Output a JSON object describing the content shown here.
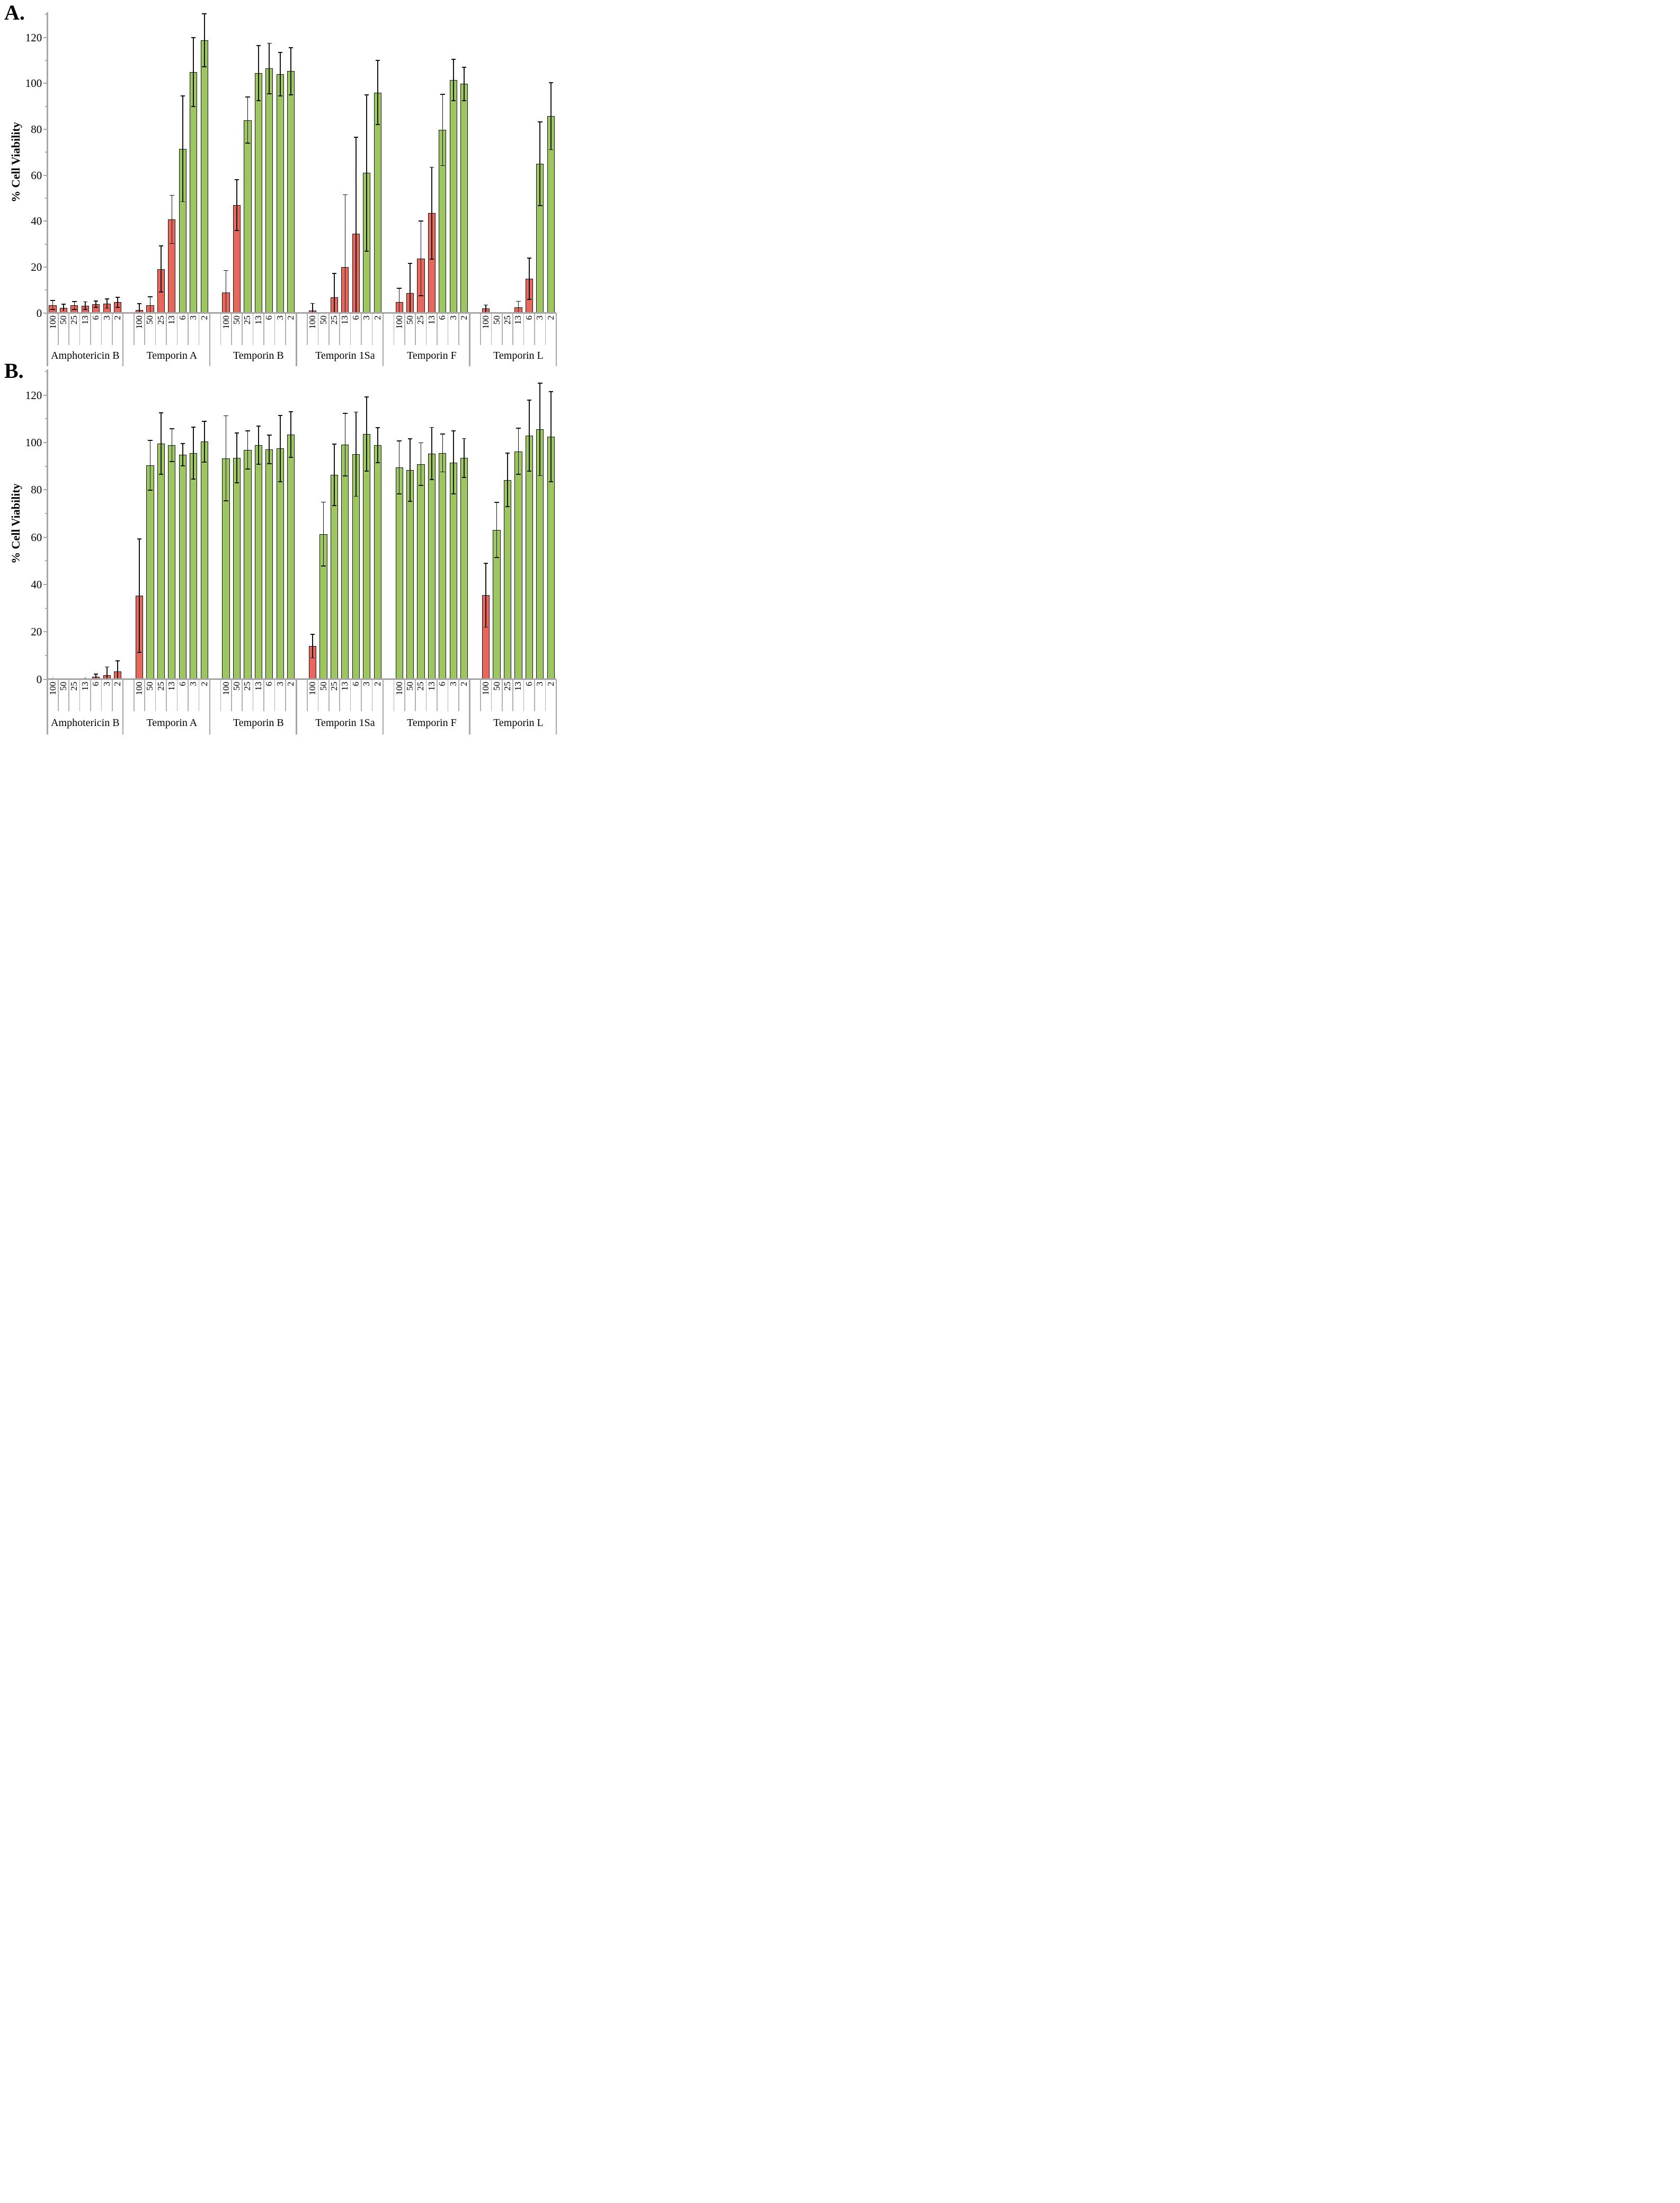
{
  "style": {
    "bar_red": "#E8675D",
    "bar_green": "#9DC561",
    "bar_border": "#141414",
    "axis_color": "#A6A6A6",
    "error_color": "#141414",
    "background": "#FFFFFF"
  },
  "chart_data": [
    {
      "panel": "A.",
      "type": "bar",
      "ylabel": "% Cell Viability",
      "ylim": [
        0,
        130
      ],
      "yticks": [
        0,
        20,
        40,
        60,
        80,
        100,
        120
      ],
      "minor_tick_step": 10,
      "grid": false,
      "legend": "none",
      "concentrations": [
        "100",
        "50",
        "25",
        "13",
        "6",
        "3",
        "2"
      ],
      "groups": [
        {
          "label": "Amphotericin B",
          "values": [
            3.5,
            2.3,
            3.3,
            3.2,
            3.9,
            4.1,
            4.7
          ],
          "errors": [
            2.0,
            1.5,
            1.7,
            1.7,
            1.4,
            2.0,
            2.2
          ],
          "colors": [
            "red",
            "red",
            "red",
            "red",
            "red",
            "red",
            "red"
          ]
        },
        {
          "label": "Temporin A",
          "values": [
            1.3,
            3.4,
            19.2,
            40.8,
            71.5,
            105.0,
            118.8
          ],
          "errors": [
            2.8,
            3.7,
            10.0,
            10.5,
            23.0,
            15.0,
            11.5
          ],
          "colors": [
            "red",
            "red",
            "red",
            "red",
            "green",
            "green",
            "green"
          ]
        },
        {
          "label": "Temporin B",
          "values": [
            9.0,
            47.0,
            84.0,
            104.5,
            106.5,
            104.0,
            105.3
          ],
          "errors": [
            9.5,
            11.0,
            10.0,
            12.0,
            11.0,
            9.5,
            10.3
          ],
          "colors": [
            "red",
            "red",
            "green",
            "green",
            "green",
            "green",
            "green"
          ]
        },
        {
          "label": "Temporin 1Sa",
          "values": [
            1.2,
            0,
            6.8,
            20.0,
            34.6,
            61.0,
            96.0
          ],
          "errors": [
            3.0,
            0,
            10.5,
            31.5,
            42.0,
            34.0,
            14.0
          ],
          "colors": [
            "red",
            "red",
            "red",
            "red",
            "red",
            "green",
            "green"
          ]
        },
        {
          "label": "Temporin F",
          "values": [
            4.8,
            8.7,
            23.8,
            43.5,
            79.7,
            101.5,
            99.8
          ],
          "errors": [
            6.0,
            13.0,
            16.3,
            20.0,
            15.5,
            9.0,
            7.3
          ],
          "colors": [
            "red",
            "red",
            "red",
            "red",
            "green",
            "green",
            "green"
          ]
        },
        {
          "label": "Temporin L",
          "values": [
            2.0,
            0,
            0,
            2.4,
            15.0,
            65.0,
            85.7
          ],
          "errors": [
            1.5,
            0,
            0,
            2.7,
            9.0,
            18.3,
            14.6
          ],
          "colors": [
            "red",
            "red",
            "red",
            "red",
            "red",
            "green",
            "green"
          ]
        }
      ]
    },
    {
      "panel": "B.",
      "type": "bar",
      "ylabel": "% Cell Viability",
      "ylim": [
        0,
        130
      ],
      "yticks": [
        0,
        20,
        40,
        60,
        80,
        100,
        120
      ],
      "minor_tick_step": 10,
      "grid": false,
      "legend": "none",
      "concentrations": [
        "100",
        "50",
        "25",
        "13",
        "6",
        "3",
        "2"
      ],
      "groups": [
        {
          "label": "Amphotericin B",
          "values": [
            0.4,
            0,
            0,
            0.3,
            1.0,
            1.8,
            3.2
          ],
          "errors": [
            0.3,
            0,
            0,
            0.3,
            1.2,
            3.4,
            4.5
          ],
          "colors": [
            "red",
            "red",
            "red",
            "red",
            "red",
            "red",
            "red"
          ]
        },
        {
          "label": "Temporin A",
          "values": [
            35.3,
            90.4,
            99.5,
            98.9,
            94.9,
            95.5,
            100.4
          ],
          "errors": [
            24.0,
            10.5,
            13.0,
            7.0,
            4.7,
            11.0,
            8.6
          ],
          "colors": [
            "red",
            "green",
            "green",
            "green",
            "green",
            "green",
            "green"
          ]
        },
        {
          "label": "Temporin B",
          "values": [
            93.3,
            93.5,
            96.9,
            98.9,
            97.1,
            97.5,
            103.4
          ],
          "errors": [
            18.0,
            10.5,
            8.0,
            8.0,
            6.0,
            14.0,
            9.6
          ],
          "colors": [
            "green",
            "green",
            "green",
            "green",
            "green",
            "green",
            "green"
          ]
        },
        {
          "label": "Temporin 1Sa",
          "values": [
            14.0,
            61.3,
            86.4,
            99.1,
            95.1,
            103.6,
            98.9
          ],
          "errors": [
            5.0,
            13.5,
            13.0,
            13.2,
            17.8,
            15.6,
            7.4
          ],
          "colors": [
            "red",
            "green",
            "green",
            "green",
            "green",
            "green",
            "green"
          ]
        },
        {
          "label": "Temporin F",
          "values": [
            89.5,
            88.4,
            90.9,
            95.4,
            95.6,
            91.6,
            93.5
          ],
          "errors": [
            11.2,
            13.2,
            9.0,
            11.0,
            8.0,
            13.3,
            8.2
          ],
          "colors": [
            "green",
            "green",
            "green",
            "green",
            "green",
            "green",
            "green"
          ]
        },
        {
          "label": "Temporin L",
          "values": [
            35.5,
            63.1,
            84.2,
            96.3,
            103.0,
            105.5,
            102.5
          ],
          "errors": [
            13.5,
            11.6,
            11.3,
            9.8,
            15.0,
            19.5,
            19.0
          ],
          "colors": [
            "red",
            "green",
            "green",
            "green",
            "green",
            "green",
            "green"
          ]
        }
      ]
    }
  ]
}
